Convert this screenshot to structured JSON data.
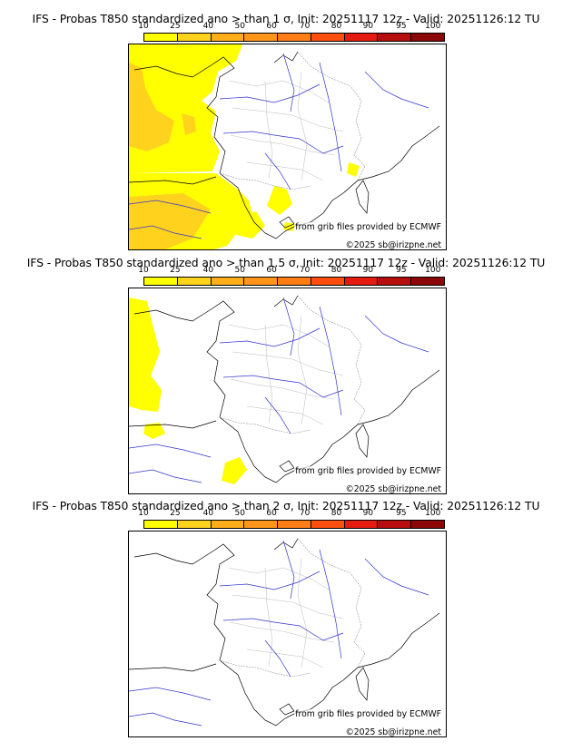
{
  "colorbar": {
    "ticks": [
      "10",
      "25",
      "40",
      "50",
      "60",
      "70",
      "80",
      "90",
      "95",
      "100"
    ],
    "colors": [
      "#ffff00",
      "#ffd21e",
      "#ffae1a",
      "#ff961a",
      "#ff7d14",
      "#ff4f0e",
      "#e51a10",
      "#b80d0d",
      "#8c0808",
      "#5e0404"
    ]
  },
  "credit": {
    "source": "from grib files provided by ECMWF",
    "copyright": "©2025 sb@irizpne.net"
  },
  "panels": [
    {
      "title": "IFS - Probas T850  standardized ano > than 1 σ, Init: 20251117 12z - Valid: 20251126:12 TU",
      "threshold": "1 σ"
    },
    {
      "title": "IFS - Probas T850  standardized ano > than 1.5 σ, Init: 20251117 12z - Valid: 20251126:12 TU",
      "threshold": "1.5 σ"
    },
    {
      "title": "IFS - Probas T850  standardized ano > than 2 σ, Init: 20251117 12z - Valid: 20251126:12 TU",
      "threshold": "2 σ"
    }
  ]
}
